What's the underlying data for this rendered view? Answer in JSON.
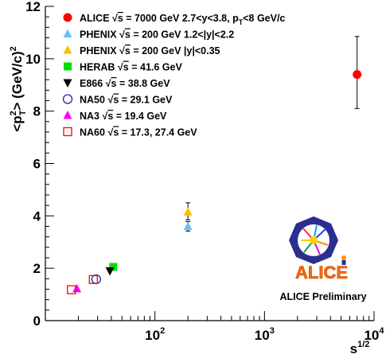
{
  "chart_data": {
    "type": "scatter",
    "x_scale": "log",
    "xlim": [
      10,
      10000
    ],
    "ylim": [
      0,
      12
    ],
    "xlabel": "s",
    "xlabel_sup": "1/2",
    "ylabel_parts": {
      "a": "<p",
      "b": "2",
      "c": "T",
      "d": "> (GeV/c)",
      "e": "2"
    },
    "x_ticks": [
      {
        "value": 100,
        "base": "10",
        "exp": "2"
      },
      {
        "value": 1000,
        "base": "10",
        "exp": "3"
      },
      {
        "value": 10000,
        "base": "10",
        "exp": "4"
      }
    ],
    "y_ticks": [
      {
        "value": 0,
        "label": "0"
      },
      {
        "value": 2,
        "label": "2"
      },
      {
        "value": 4,
        "label": "4"
      },
      {
        "value": 6,
        "label": "6"
      },
      {
        "value": 8,
        "label": "8"
      },
      {
        "value": 10,
        "label": "10"
      },
      {
        "value": 12,
        "label": "12"
      }
    ],
    "legend_position": "top-left",
    "series": [
      {
        "name_parts": [
          "ALICE ",
          " = 7000 GeV 2.7<y<3.8, p",
          "T",
          "<8 GeV/c"
        ],
        "marker": "circle",
        "color": "#ff0000",
        "points": [
          {
            "x": 7000,
            "y": 9.4,
            "yerr_lo": 1.3,
            "yerr_hi": 1.45
          }
        ]
      },
      {
        "name_parts": [
          "PHENIX ",
          " = 200 GeV 1.2<|y|<2.2"
        ],
        "marker": "triangle-up",
        "color": "#66c2ff",
        "points": [
          {
            "x": 200,
            "y": 3.6,
            "yerr_lo": 0.18,
            "yerr_hi": 0.18
          }
        ]
      },
      {
        "name_parts": [
          "PHENIX ",
          " = 200 GeV |y|<0.35"
        ],
        "marker": "triangle-up",
        "color": "#ffc000",
        "points": [
          {
            "x": 200,
            "y": 4.15,
            "yerr_lo": 0.3,
            "yerr_hi": 0.35
          }
        ]
      },
      {
        "name_parts": [
          "HERAB ",
          " = 41.6 GeV"
        ],
        "marker": "square",
        "color": "#00dd00",
        "points": [
          {
            "x": 41.6,
            "y": 2.05
          }
        ]
      },
      {
        "name_parts": [
          "E866 ",
          " = 38.8 GeV"
        ],
        "marker": "triangle-down",
        "color": "#000000",
        "points": [
          {
            "x": 38.8,
            "y": 1.9
          }
        ]
      },
      {
        "name_parts": [
          "NA50 ",
          " = 29.1 GeV"
        ],
        "marker": "circle-open",
        "color": "#2222aa",
        "points": [
          {
            "x": 29.1,
            "y": 1.58
          }
        ]
      },
      {
        "name_parts": [
          "NA3 ",
          " = 19.4 GeV"
        ],
        "marker": "triangle-up",
        "color": "#ff00ff",
        "points": [
          {
            "x": 19.4,
            "y": 1.22
          }
        ]
      },
      {
        "name_parts": [
          "NA60 ",
          " = 17.3, 27.4 GeV"
        ],
        "marker": "square-open",
        "color": "#ff0000",
        "points": [
          {
            "x": 17.3,
            "y": 1.18
          },
          {
            "x": 27.4,
            "y": 1.57
          }
        ]
      }
    ],
    "sqrt_symbol": "√",
    "sqrt_arg": "s",
    "logo_text": "ALICE",
    "annotation": "ALICE Preliminary",
    "annotation_color": "#ff0000"
  }
}
